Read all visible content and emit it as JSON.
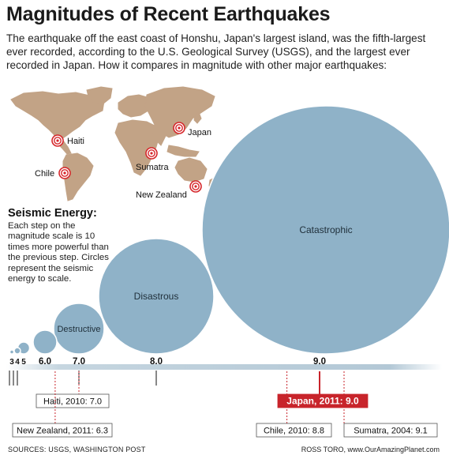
{
  "header": {
    "title": "Magnitudes of Recent Earthquakes",
    "subtitle": "The earthquake off the east coast of Honshu, Japan's largest island, was the fifth-largest ever recorded, according to the U.S. Geological Survey (USGS), and the largest ever recorded in Japan. How it compares in magnitude with other major earthquakes:"
  },
  "map": {
    "locations": [
      "Haiti",
      "Japan",
      "Sumatra",
      "Chile",
      "New Zealand"
    ]
  },
  "energy": {
    "title": "Seismic Energy:",
    "body": "Each step on the magnitude scale is 10 times more powerful than the previous step. Circles represent the seismic energy to scale."
  },
  "footer": {
    "sources": "SOURCES: USGS, WASHINGTON POST",
    "credit": "ROSS TORO, www.OurAmazingPlanet.com"
  },
  "colors": {
    "circle": "#8fb2c8",
    "circle_edge": "#ffffff",
    "target_red": "#d6262a",
    "highlight_red": "#c8242b",
    "axis_bar": "#b9ccd8"
  },
  "chart_data": {
    "type": "bubble",
    "title": "Seismic Energy",
    "scale": [
      {
        "magnitude": 3,
        "label": "3",
        "category": ""
      },
      {
        "magnitude": 4,
        "label": "4",
        "category": ""
      },
      {
        "magnitude": 5,
        "label": "5",
        "category": ""
      },
      {
        "magnitude": 6,
        "label": "6.0",
        "category": ""
      },
      {
        "magnitude": 7,
        "label": "7.0",
        "category": "Destructive"
      },
      {
        "magnitude": 8,
        "label": "8.0",
        "category": "Disastrous"
      },
      {
        "magnitude": 9,
        "label": "9.0",
        "category": "Catastrophic"
      }
    ],
    "events": [
      {
        "label": "Haiti, 2010: 7.0",
        "magnitude": 7.0,
        "highlight": false
      },
      {
        "label": "New Zealand, 2011: 6.3",
        "magnitude": 6.3,
        "highlight": false
      },
      {
        "label": "Japan, 2011: 9.0",
        "magnitude": 9.0,
        "highlight": true
      },
      {
        "label": "Chile, 2010: 8.8",
        "magnitude": 8.8,
        "highlight": false
      },
      {
        "label": "Sumatra, 2004: 9.1",
        "magnitude": 9.1,
        "highlight": false
      }
    ]
  }
}
